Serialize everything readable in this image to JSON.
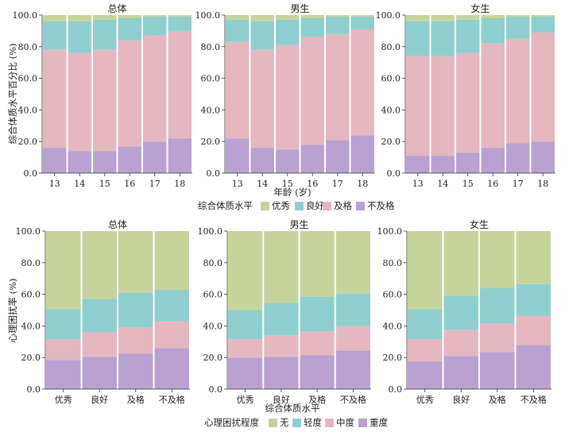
{
  "colors": {
    "top": [
      "#b9a2d2",
      "#e5b7bf",
      "#8fcfcf",
      "#c6d49c"
    ],
    "bottom": [
      "#b9a2d2",
      "#e5b7bf",
      "#8fcfcf",
      "#c6d49c"
    ]
  },
  "top_legend": {
    "title": "综合体质水平",
    "items": [
      {
        "label": "优秀",
        "color": "#c6d49c"
      },
      {
        "label": "良好",
        "color": "#8fcfcf"
      },
      {
        "label": "及格",
        "color": "#e5b7bf"
      },
      {
        "label": "不及格",
        "color": "#b9a2d2"
      }
    ]
  },
  "bottom_legend": {
    "title": "心理困扰程度",
    "items": [
      {
        "label": "无",
        "color": "#c6d49c"
      },
      {
        "label": "轻度",
        "color": "#8fcfcf"
      },
      {
        "label": "中度",
        "color": "#e5b7bf"
      },
      {
        "label": "重度",
        "color": "#b9a2d2"
      }
    ]
  },
  "chart_data": [
    {
      "type": "bar",
      "stacked": true,
      "title": "总体",
      "row": "top",
      "xlabel": "年龄 (岁)",
      "ylabel": "综合体质水平百分比 (%)",
      "ylim": [
        0,
        100
      ],
      "yticks": [
        "0.0",
        "20.0",
        "40.0",
        "60.0",
        "80.0",
        "100.0"
      ],
      "categories": [
        "13",
        "14",
        "15",
        "16",
        "17",
        "18"
      ],
      "series": [
        {
          "name": "不及格",
          "values": [
            16,
            14,
            14,
            17,
            20,
            22
          ]
        },
        {
          "name": "及格",
          "values": [
            62,
            62,
            64,
            67,
            67,
            68
          ]
        },
        {
          "name": "良好",
          "values": [
            18,
            20,
            19,
            14,
            12,
            9
          ]
        },
        {
          "name": "优秀",
          "values": [
            4,
            4,
            3,
            2,
            1,
            1
          ]
        }
      ]
    },
    {
      "type": "bar",
      "stacked": true,
      "title": "男生",
      "row": "top",
      "ylim": [
        0,
        100
      ],
      "yticks": [
        "0.0",
        "20.0",
        "40.0",
        "60.0",
        "80.0",
        "100.0"
      ],
      "categories": [
        "13",
        "14",
        "15",
        "16",
        "17",
        "18"
      ],
      "series": [
        {
          "name": "不及格",
          "values": [
            22,
            16,
            15,
            18,
            21,
            24
          ]
        },
        {
          "name": "及格",
          "values": [
            61,
            62,
            66,
            68,
            67,
            67
          ]
        },
        {
          "name": "良好",
          "values": [
            14,
            18,
            16,
            12,
            11,
            8
          ]
        },
        {
          "name": "优秀",
          "values": [
            3,
            4,
            3,
            2,
            1,
            1
          ]
        }
      ]
    },
    {
      "type": "bar",
      "stacked": true,
      "title": "女生",
      "row": "top",
      "ylim": [
        0,
        100
      ],
      "yticks": [
        "0.0",
        "20.0",
        "40.0",
        "60.0",
        "80.0",
        "100.0"
      ],
      "categories": [
        "13",
        "14",
        "15",
        "16",
        "17",
        "18"
      ],
      "series": [
        {
          "name": "不及格",
          "values": [
            11,
            11,
            13,
            16,
            19,
            20
          ]
        },
        {
          "name": "及格",
          "values": [
            63,
            63,
            63,
            66,
            66,
            69
          ]
        },
        {
          "name": "良好",
          "values": [
            22,
            22,
            21,
            16,
            14,
            10
          ]
        },
        {
          "name": "优秀",
          "values": [
            4,
            4,
            3,
            2,
            1,
            1
          ]
        }
      ]
    },
    {
      "type": "bar",
      "stacked": true,
      "title": "总体",
      "row": "bottom",
      "xlabel": "综合体质水平",
      "ylabel": "心理困扰率 (%)",
      "ylim": [
        0,
        100
      ],
      "yticks": [
        "0.0",
        "20.0",
        "40.0",
        "60.0",
        "80.0",
        "100.0"
      ],
      "categories": [
        "优秀",
        "良好",
        "及格",
        "不及格"
      ],
      "series": [
        {
          "name": "重度",
          "values": [
            18.5,
            20.5,
            22.5,
            26
          ]
        },
        {
          "name": "中度",
          "values": [
            13,
            15.5,
            16.5,
            17
          ]
        },
        {
          "name": "轻度",
          "values": [
            19,
            21,
            22,
            20
          ]
        },
        {
          "name": "无",
          "values": [
            49.5,
            43,
            39,
            37
          ]
        }
      ]
    },
    {
      "type": "bar",
      "stacked": true,
      "title": "男生",
      "row": "bottom",
      "ylim": [
        0,
        100
      ],
      "yticks": [
        "0.0",
        "20.0",
        "40.0",
        "60.0",
        "80.0",
        "100.0"
      ],
      "categories": [
        "优秀",
        "良好",
        "及格",
        "不及格"
      ],
      "series": [
        {
          "name": "重度",
          "values": [
            20,
            20.5,
            21.5,
            24.5
          ]
        },
        {
          "name": "中度",
          "values": [
            11.5,
            13.5,
            15,
            15.5
          ]
        },
        {
          "name": "轻度",
          "values": [
            18.5,
            20.5,
            22,
            20.5
          ]
        },
        {
          "name": "无",
          "values": [
            50,
            45.5,
            41.5,
            39.5
          ]
        }
      ]
    },
    {
      "type": "bar",
      "stacked": true,
      "title": "女生",
      "row": "bottom",
      "ylim": [
        0,
        100
      ],
      "yticks": [
        "0.0",
        "20.0",
        "40.0",
        "60.0",
        "80.0",
        "100.0"
      ],
      "categories": [
        "优秀",
        "良好",
        "及格",
        "不及格"
      ],
      "series": [
        {
          "name": "重度",
          "values": [
            17.5,
            21,
            23.5,
            28
          ]
        },
        {
          "name": "中度",
          "values": [
            14,
            16.5,
            18,
            18.5
          ]
        },
        {
          "name": "轻度",
          "values": [
            19,
            21.5,
            22.5,
            20
          ]
        },
        {
          "name": "无",
          "values": [
            49.5,
            41,
            36,
            33.5
          ]
        }
      ]
    }
  ]
}
